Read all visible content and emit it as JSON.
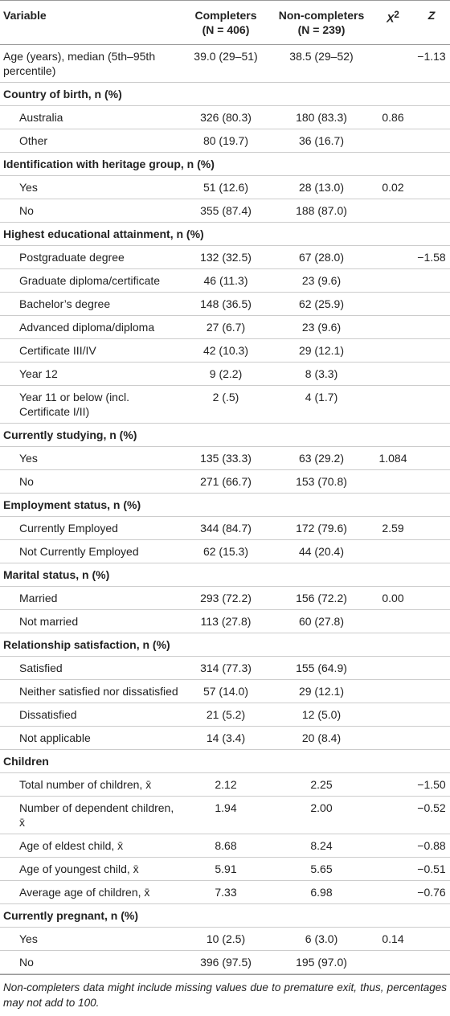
{
  "table": {
    "header": {
      "variable": "Variable",
      "completers": [
        "Completers",
        "(N = 406)"
      ],
      "noncompleters": [
        "Non-completers",
        "(N = 239)"
      ],
      "x2": {
        "text": "X",
        "sup": "2"
      },
      "z": "Z"
    },
    "lead_row": [
      "Age (years), median (5th–95th percentile)",
      "39.0 (29–51)",
      "38.5 (29–52)",
      null,
      "−1.13"
    ],
    "sections": [
      {
        "title": "Country of birth, n (%)",
        "rows": [
          [
            "Australia",
            "326 (80.3)",
            "180 (83.3)",
            "0.86",
            null
          ],
          [
            "Other",
            "80 (19.7)",
            "36 (16.7)",
            null,
            null
          ]
        ]
      },
      {
        "title": "Identification with heritage group, n (%)",
        "rows": [
          [
            "Yes",
            "51 (12.6)",
            "28 (13.0)",
            "0.02",
            null
          ],
          [
            "No",
            "355 (87.4)",
            "188 (87.0)",
            null,
            null
          ]
        ]
      },
      {
        "title": "Highest educational attainment, n (%)",
        "rows": [
          [
            "Postgraduate degree",
            "132 (32.5)",
            "67 (28.0)",
            null,
            "−1.58"
          ],
          [
            "Graduate diploma/certificate",
            "46 (11.3)",
            "23 (9.6)",
            null,
            null
          ],
          [
            "Bachelor’s degree",
            "148 (36.5)",
            "62 (25.9)",
            null,
            null
          ],
          [
            "Advanced diploma/diploma",
            "27 (6.7)",
            "23 (9.6)",
            null,
            null
          ],
          [
            "Certificate III/IV",
            "42 (10.3)",
            "29 (12.1)",
            null,
            null
          ],
          [
            "Year 12",
            "9 (2.2)",
            "8 (3.3)",
            null,
            null
          ],
          [
            "Year 11 or below (incl. Certificate I/II)",
            "2 (.5)",
            "4 (1.7)",
            null,
            null
          ]
        ]
      },
      {
        "title": "Currently studying, n (%)",
        "rows": [
          [
            "Yes",
            "135 (33.3)",
            "63 (29.2)",
            "1.084",
            null
          ],
          [
            "No",
            "271 (66.7)",
            "153 (70.8)",
            null,
            null
          ]
        ]
      },
      {
        "title": "Employment status, n (%)",
        "rows": [
          [
            "Currently Employed",
            "344 (84.7)",
            "172 (79.6)",
            "2.59",
            null
          ],
          [
            "Not Currently Employed",
            "62 (15.3)",
            "44 (20.4)",
            null,
            null
          ]
        ]
      },
      {
        "title": "Marital status, n (%)",
        "rows": [
          [
            "Married",
            "293 (72.2)",
            "156 (72.2)",
            "0.00",
            null
          ],
          [
            "Not married",
            "113 (27.8)",
            "60 (27.8)",
            null,
            null
          ]
        ]
      },
      {
        "title": "Relationship satisfaction, n (%)",
        "rows": [
          [
            "Satisfied",
            "314 (77.3)",
            "155 (64.9)",
            null,
            null
          ],
          [
            "Neither satisfied nor dissatisfied",
            "57 (14.0)",
            "29 (12.1)",
            null,
            null
          ],
          [
            "Dissatisfied",
            "21 (5.2)",
            "12 (5.0)",
            null,
            null
          ],
          [
            "Not applicable",
            "14 (3.4)",
            "20 (8.4)",
            null,
            null
          ]
        ]
      },
      {
        "title": "Children",
        "rows": [
          [
            "Total number of children, x̄",
            "2.12",
            "2.25",
            null,
            "−1.50"
          ],
          [
            "Number of dependent children, x̄",
            "1.94",
            "2.00",
            null,
            "−0.52"
          ],
          [
            "Age of eldest child, x̄",
            "8.68",
            "8.24",
            null,
            "−0.88"
          ],
          [
            "Age of youngest child, x̄",
            "5.91",
            "5.65",
            null,
            "−0.51"
          ],
          [
            "Average age of children, x̄",
            "7.33",
            "6.98",
            null,
            "−0.76"
          ]
        ]
      },
      {
        "title": "Currently pregnant, n (%)",
        "rows": [
          [
            "Yes",
            "10 (2.5)",
            "6 (3.0)",
            "0.14",
            null
          ],
          [
            "No",
            "396 (97.5)",
            "195 (97.0)",
            null,
            null
          ]
        ]
      }
    ],
    "footnote": "Non-completers data might include missing values due to premature exit, thus, percentages may not add to 100."
  }
}
